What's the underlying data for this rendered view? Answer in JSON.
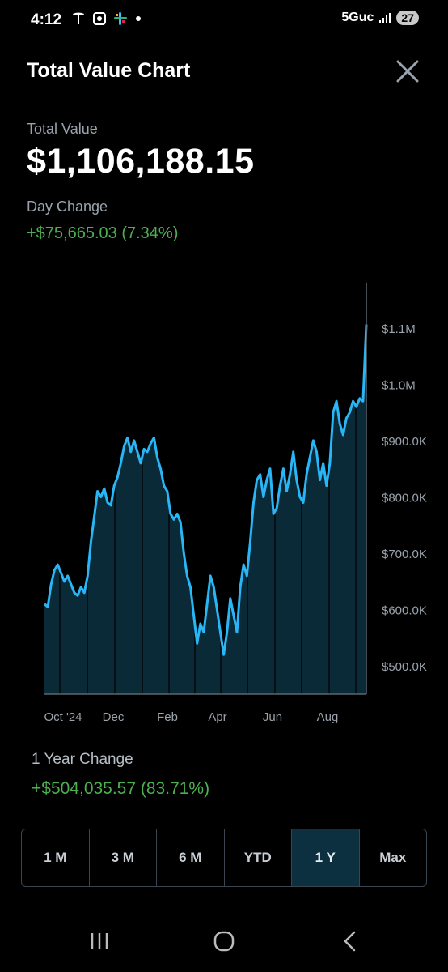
{
  "status_bar": {
    "time": "4:12",
    "network": "5Guc",
    "battery": "27"
  },
  "header": {
    "title": "Total Value Chart"
  },
  "total_value": {
    "label": "Total Value",
    "value": "$1,106,188.15"
  },
  "day_change": {
    "label": "Day Change",
    "value": "+$75,665.03 (7.34%)"
  },
  "chart_data": {
    "type": "area",
    "x_ticks": [
      "Oct '24",
      "Dec",
      "Feb",
      "Apr",
      "Jun",
      "Aug"
    ],
    "y_ticks": [
      "$500.0K",
      "$600.0K",
      "$700.0K",
      "$800.0K",
      "$900.0K",
      "$1.0M",
      "$1.1M"
    ],
    "ylim": [
      450000,
      1150000
    ],
    "series": [
      {
        "values": [
          610000,
          605000,
          645000,
          670000,
          680000,
          665000,
          650000,
          660000,
          645000,
          630000,
          625000,
          640000,
          630000,
          660000,
          720000,
          765000,
          810000,
          800000,
          815000,
          790000,
          785000,
          820000,
          835000,
          860000,
          890000,
          905000,
          880000,
          900000,
          880000,
          860000,
          885000,
          880000,
          895000,
          905000,
          870000,
          850000,
          820000,
          810000,
          770000,
          760000,
          770000,
          755000,
          700000,
          660000,
          640000,
          590000,
          540000,
          575000,
          560000,
          610000,
          660000,
          640000,
          600000,
          560000,
          520000,
          560000,
          620000,
          590000,
          560000,
          640000,
          680000,
          660000,
          720000,
          790000,
          830000,
          840000,
          800000,
          830000,
          850000,
          770000,
          780000,
          820000,
          850000,
          810000,
          840000,
          880000,
          830000,
          800000,
          790000,
          840000,
          870000,
          900000,
          880000,
          830000,
          860000,
          820000,
          860000,
          950000,
          970000,
          930000,
          910000,
          940000,
          950000,
          970000,
          960000,
          975000,
          970000,
          1106188
        ]
      }
    ],
    "grid": false,
    "legend": "none"
  },
  "year_change": {
    "label": "1 Year Change",
    "value": "+$504,035.57 (83.71%)"
  },
  "ranges": {
    "r1m": "1 M",
    "r3m": "3 M",
    "r6m": "6 M",
    "ytd": "YTD",
    "r1y": "1 Y",
    "max": "Max",
    "selected": "1 Y"
  },
  "colors": {
    "accent_line": "#29b6f6",
    "area_fill": "#0b2a38",
    "positive": "#4caf50",
    "active_range_bg": "#0c3040"
  }
}
